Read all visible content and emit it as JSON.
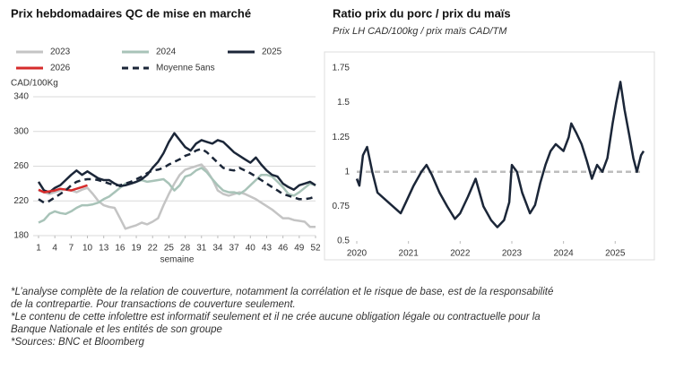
{
  "chart_data": [
    {
      "type": "line",
      "title": "Prix hebdomadaires QC de mise en marché",
      "y_label": "CAD/100Kg",
      "x_label": "semaine",
      "x": [
        1,
        2,
        3,
        4,
        5,
        6,
        7,
        8,
        9,
        10,
        11,
        12,
        13,
        14,
        15,
        16,
        17,
        18,
        19,
        20,
        21,
        22,
        23,
        24,
        25,
        26,
        27,
        28,
        29,
        30,
        31,
        32,
        33,
        34,
        35,
        36,
        37,
        38,
        39,
        40,
        41,
        42,
        43,
        44,
        45,
        46,
        47,
        48,
        49,
        50,
        51,
        52
      ],
      "xlim": [
        1,
        52
      ],
      "xticks": [
        1,
        4,
        7,
        10,
        13,
        16,
        19,
        22,
        25,
        28,
        31,
        34,
        37,
        40,
        43,
        46,
        49,
        52
      ],
      "ylim": [
        180,
        340
      ],
      "yticks": [
        180,
        220,
        260,
        300,
        340
      ],
      "grid": true,
      "series": [
        {
          "name": "2023",
          "color": "#c4c4c4",
          "values": [
            232,
            230,
            228,
            230,
            232,
            234,
            232,
            230,
            233,
            235,
            228,
            220,
            215,
            213,
            212,
            200,
            188,
            190,
            192,
            195,
            193,
            196,
            200,
            215,
            228,
            240,
            250,
            256,
            258,
            260,
            262,
            255,
            245,
            232,
            228,
            226,
            228,
            230,
            228,
            225,
            222,
            218,
            214,
            210,
            205,
            200,
            200,
            198,
            197,
            196,
            190,
            190
          ]
        },
        {
          "name": "2024",
          "color": "#a8c3b8",
          "values": [
            195,
            198,
            205,
            208,
            206,
            205,
            208,
            212,
            215,
            215,
            216,
            218,
            222,
            225,
            230,
            235,
            240,
            240,
            242,
            244,
            242,
            243,
            244,
            245,
            240,
            232,
            238,
            248,
            250,
            255,
            258,
            253,
            245,
            238,
            232,
            230,
            230,
            228,
            232,
            238,
            244,
            250,
            250,
            248,
            242,
            236,
            228,
            226,
            230,
            235,
            240,
            238
          ]
        },
        {
          "name": "2025",
          "color": "#1b2638",
          "values": [
            242,
            232,
            230,
            235,
            238,
            244,
            250,
            255,
            250,
            254,
            250,
            246,
            244,
            244,
            240,
            237,
            238,
            240,
            242,
            245,
            250,
            258,
            265,
            275,
            288,
            298,
            290,
            282,
            278,
            286,
            290,
            288,
            286,
            290,
            288,
            282,
            276,
            272,
            268,
            264,
            270,
            262,
            255,
            250,
            248,
            240,
            236,
            233,
            238,
            240,
            242,
            238
          ]
        },
        {
          "name": "2026",
          "color": "#d62b2b",
          "values": [
            233,
            230,
            231,
            232,
            234,
            233,
            232,
            234,
            236,
            238,
            null,
            null,
            null,
            null,
            null,
            null,
            null,
            null,
            null,
            null,
            null,
            null,
            null,
            null,
            null,
            null,
            null,
            null,
            null,
            null,
            null,
            null,
            null,
            null,
            null,
            null,
            null,
            null,
            null,
            null,
            null,
            null,
            null,
            null,
            null,
            null,
            null,
            null,
            null,
            null,
            null,
            null
          ]
        },
        {
          "name": "Moyenne 5ans",
          "color": "#1b2638",
          "dashed": true,
          "values": [
            222,
            218,
            220,
            224,
            228,
            232,
            238,
            242,
            244,
            245,
            245,
            244,
            242,
            240,
            238,
            238,
            240,
            242,
            245,
            248,
            252,
            255,
            256,
            258,
            262,
            265,
            268,
            272,
            274,
            278,
            280,
            276,
            270,
            264,
            258,
            256,
            255,
            258,
            255,
            252,
            248,
            244,
            240,
            236,
            232,
            228,
            226,
            224,
            222,
            222,
            223,
            225
          ]
        }
      ]
    },
    {
      "type": "line",
      "title": "Ratio prix du porc / prix du maïs",
      "subtitle": "Prix LH CAD/100kg / prix maïs CAD/TM",
      "x": [
        2020,
        2020.05,
        2020.12,
        2020.2,
        2020.3,
        2020.4,
        2020.55,
        2020.7,
        2020.85,
        2020.95,
        2021.1,
        2021.25,
        2021.35,
        2021.45,
        2021.6,
        2021.75,
        2021.9,
        2022,
        2022.15,
        2022.3,
        2022.45,
        2022.6,
        2022.72,
        2022.85,
        2022.95,
        2023,
        2023.1,
        2023.2,
        2023.35,
        2023.45,
        2023.55,
        2023.65,
        2023.75,
        2023.85,
        2024,
        2024.1,
        2024.15,
        2024.25,
        2024.35,
        2024.45,
        2024.55,
        2024.65,
        2024.75,
        2024.85,
        2024.95,
        2025.02,
        2025.1,
        2025.18,
        2025.28,
        2025.35,
        2025.42,
        2025.5,
        2025.55
      ],
      "values": [
        0.95,
        0.9,
        1.12,
        1.18,
        1.0,
        0.85,
        0.8,
        0.75,
        0.7,
        0.78,
        0.9,
        1.0,
        1.05,
        0.98,
        0.85,
        0.75,
        0.66,
        0.7,
        0.82,
        0.95,
        0.75,
        0.65,
        0.6,
        0.65,
        0.78,
        1.05,
        1.0,
        0.85,
        0.7,
        0.76,
        0.92,
        1.05,
        1.15,
        1.2,
        1.15,
        1.25,
        1.35,
        1.28,
        1.2,
        1.08,
        0.95,
        1.05,
        1.0,
        1.1,
        1.35,
        1.5,
        1.65,
        1.45,
        1.25,
        1.1,
        1.0,
        1.12,
        1.15
      ],
      "color": "#1b2638",
      "xlim": [
        2020,
        2025.55
      ],
      "xticks": [
        2020,
        2021,
        2022,
        2023,
        2024,
        2025
      ],
      "ylim": [
        0.5,
        1.75
      ],
      "yticks": [
        0.5,
        0.75,
        1,
        1.25,
        1.5,
        1.75
      ],
      "grid": false,
      "reference_line": 1,
      "reference_color": "#bdbdbd"
    }
  ],
  "footnotes": [
    "*L’analyse complète de la relation de couverture, notamment la corrélation et le risque de base, est de la responsabilité",
    "de la contrepartie. Pour transactions de couverture seulement.",
    "*Le contenu de cette infolettre est informatif seulement et il ne crée aucune obligation légale ou contractuelle pour la",
    "Banque Nationale et les entités de son groupe",
    "*Sources: BNC et Bloomberg"
  ]
}
